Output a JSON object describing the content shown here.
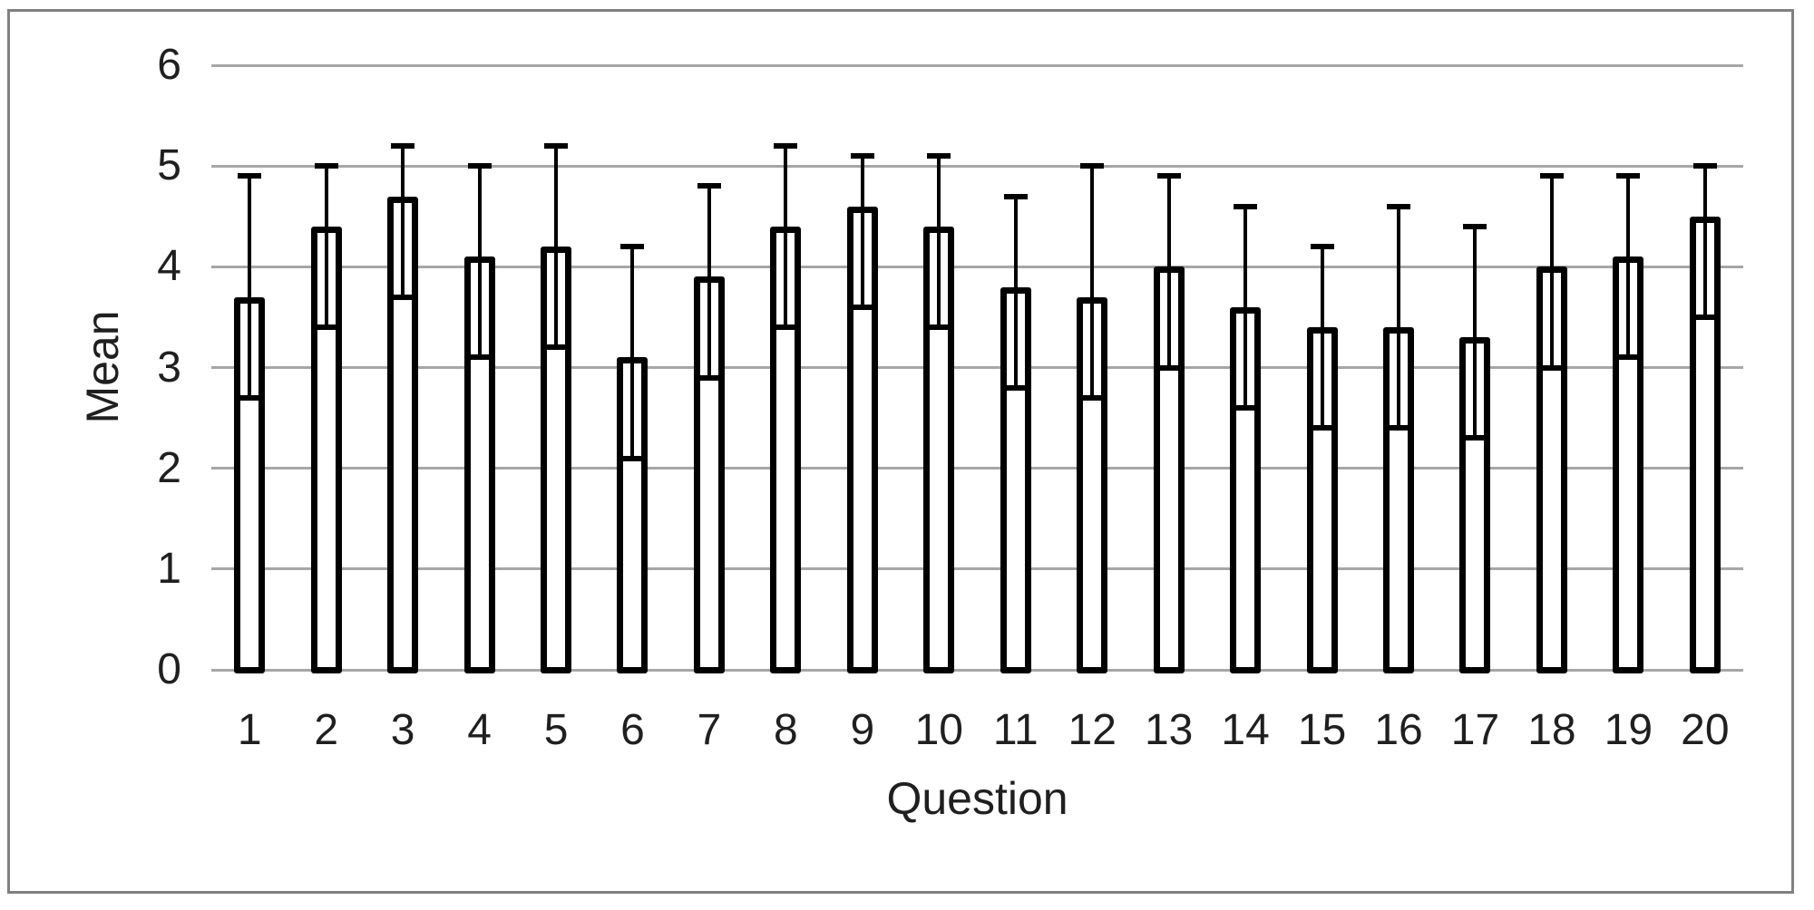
{
  "figure": {
    "background": "#ffffff",
    "border_color": "#808080",
    "text_color": "#1f1f1f"
  },
  "chart_data": {
    "type": "bar",
    "title": "",
    "xlabel": "Question",
    "ylabel": "Mean",
    "ylim": [
      0,
      6
    ],
    "yticks": [
      0,
      1,
      2,
      3,
      4,
      5,
      6
    ],
    "grid": "horizontal",
    "gridline_color": "#a6a6a6",
    "legend": "none",
    "bar_fill": "#ffffff",
    "bar_border_color": "#000000",
    "error_bar_color": "#000000",
    "categories": [
      "1",
      "2",
      "3",
      "4",
      "5",
      "6",
      "7",
      "8",
      "9",
      "10",
      "11",
      "12",
      "13",
      "14",
      "15",
      "16",
      "17",
      "18",
      "19",
      "20"
    ],
    "series": [
      {
        "name": "Mean",
        "values": [
          3.7,
          4.4,
          4.7,
          4.1,
          4.2,
          3.1,
          3.9,
          4.4,
          4.6,
          4.4,
          3.8,
          3.7,
          4.0,
          3.6,
          3.4,
          3.4,
          3.3,
          4.0,
          4.1,
          4.5
        ],
        "error_bar_top": [
          4.9,
          5.0,
          5.2,
          5.0,
          5.2,
          4.2,
          4.8,
          5.2,
          5.1,
          5.1,
          4.7,
          5.0,
          4.9,
          4.6,
          4.2,
          4.6,
          4.4,
          4.9,
          4.9,
          5.0
        ],
        "error_bar_bottom": [
          2.7,
          3.4,
          3.7,
          3.1,
          3.2,
          2.1,
          2.9,
          3.4,
          3.6,
          3.4,
          2.8,
          2.7,
          3.0,
          2.6,
          2.4,
          2.4,
          2.3,
          3.0,
          3.1,
          3.5
        ]
      }
    ]
  }
}
